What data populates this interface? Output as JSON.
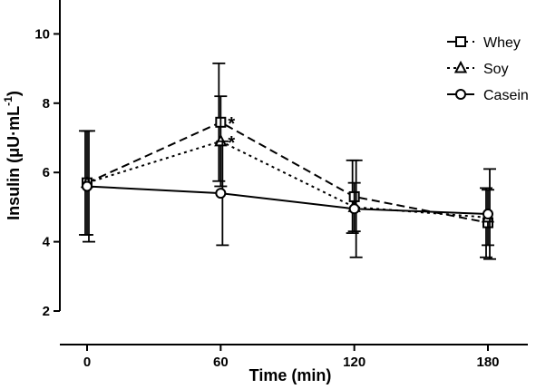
{
  "chart_data": {
    "type": "line",
    "xlabel": "Time (min)",
    "ylabel": "Insulin (μU·mL",
    "ylabel_superscript": "-1",
    "ylabel_close": ")",
    "x": [
      0,
      60,
      120,
      180
    ],
    "xlim": [
      0,
      200
    ],
    "ylim": [
      2,
      10
    ],
    "xticks": [
      0,
      60,
      120,
      180
    ],
    "yticks": [
      2,
      4,
      6,
      8,
      10
    ],
    "legend_position": "top-right",
    "series": [
      {
        "name": "Whey",
        "marker": "square",
        "dash": "dashed",
        "values": [
          5.7,
          7.45,
          5.3,
          4.55
        ],
        "err": [
          1.5,
          1.7,
          1.05,
          1.0
        ],
        "significance": [
          "",
          "*",
          "",
          ""
        ]
      },
      {
        "name": "Soy",
        "marker": "triangle",
        "dash": "dotted",
        "values": [
          5.7,
          6.9,
          5.0,
          4.7
        ],
        "err": [
          1.5,
          1.3,
          0.7,
          0.8
        ],
        "significance": [
          "",
          "*",
          "",
          ""
        ]
      },
      {
        "name": "Casein",
        "marker": "circle",
        "dash": "solid",
        "values": [
          5.6,
          5.4,
          4.95,
          4.8
        ],
        "err": [
          1.6,
          1.5,
          1.4,
          1.3
        ],
        "significance": [
          "",
          "",
          "",
          ""
        ]
      }
    ]
  }
}
